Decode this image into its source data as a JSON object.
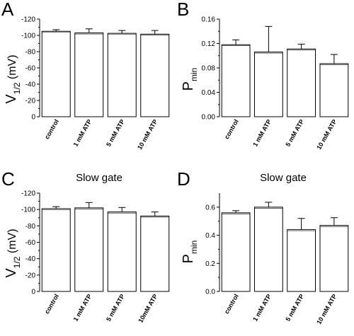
{
  "chart_data": [
    {
      "panel": "A",
      "type": "bar",
      "title": "",
      "ylabel": {
        "main": "V",
        "sub": "1/2",
        "unit": "(mV)"
      },
      "categories": [
        "control",
        "1 mM ATP",
        "5 mM ATP",
        "10 mM ATP"
      ],
      "values": [
        -105,
        -103,
        -102.5,
        -101.5
      ],
      "errors": [
        2,
        5,
        3.5,
        4.5
      ],
      "ylim": [
        0,
        -120
      ],
      "yticks": [
        0,
        -20,
        -40,
        -60,
        -80,
        -100,
        -120
      ],
      "ytick_labels": [
        "0",
        "-20",
        "-40",
        "-60",
        "-80",
        "-100",
        "-120"
      ]
    },
    {
      "panel": "B",
      "type": "bar",
      "title": "",
      "ylabel": {
        "main": "P",
        "sub": "min",
        "unit": ""
      },
      "categories": [
        "control",
        "1 mM ATP",
        "5 mM ATP",
        "10 mM ATP"
      ],
      "values": [
        0.118,
        0.106,
        0.111,
        0.087
      ],
      "errors": [
        0.008,
        0.042,
        0.008,
        0.015
      ],
      "ylim": [
        0,
        0.16
      ],
      "yticks": [
        0,
        0.04,
        0.08,
        0.12,
        0.16
      ],
      "ytick_labels": [
        "0.00",
        "0.04",
        "0.08",
        "0.12",
        "0.16"
      ]
    },
    {
      "panel": "C",
      "type": "bar",
      "title": "Slow gate",
      "ylabel": {
        "main": "V",
        "sub": "1/2",
        "unit": "(mV)"
      },
      "categories": [
        "control",
        "1 mM ATP",
        "5 mM ATP",
        "10mM ATP"
      ],
      "values": [
        -101,
        -102,
        -97,
        -92
      ],
      "errors": [
        2.5,
        6.5,
        5.5,
        5
      ],
      "ylim": [
        0,
        -120
      ],
      "yticks": [
        0,
        -20,
        -40,
        -60,
        -80,
        -100,
        -120
      ],
      "ytick_labels": [
        "0",
        "-20",
        "-40",
        "-60",
        "-80",
        "-100",
        "-120"
      ]
    },
    {
      "panel": "D",
      "type": "bar",
      "title": "Slow gate",
      "ylabel": {
        "main": "P",
        "sub": "min",
        "unit": ""
      },
      "categories": [
        "control",
        "1 mM ATP",
        "5 mM ATP",
        "10 mM ATP"
      ],
      "values": [
        0.56,
        0.6,
        0.44,
        0.47
      ],
      "errors": [
        0.015,
        0.035,
        0.08,
        0.055
      ],
      "ylim": [
        0,
        0.7
      ],
      "yticks": [
        0,
        0.2,
        0.4,
        0.6
      ],
      "ytick_labels": [
        "0.0",
        "0.2",
        "0.4",
        "0.6"
      ]
    }
  ],
  "colors": {
    "bar_fill": "#ffffff",
    "bar_stroke": "#000000",
    "axis": "#000000"
  }
}
